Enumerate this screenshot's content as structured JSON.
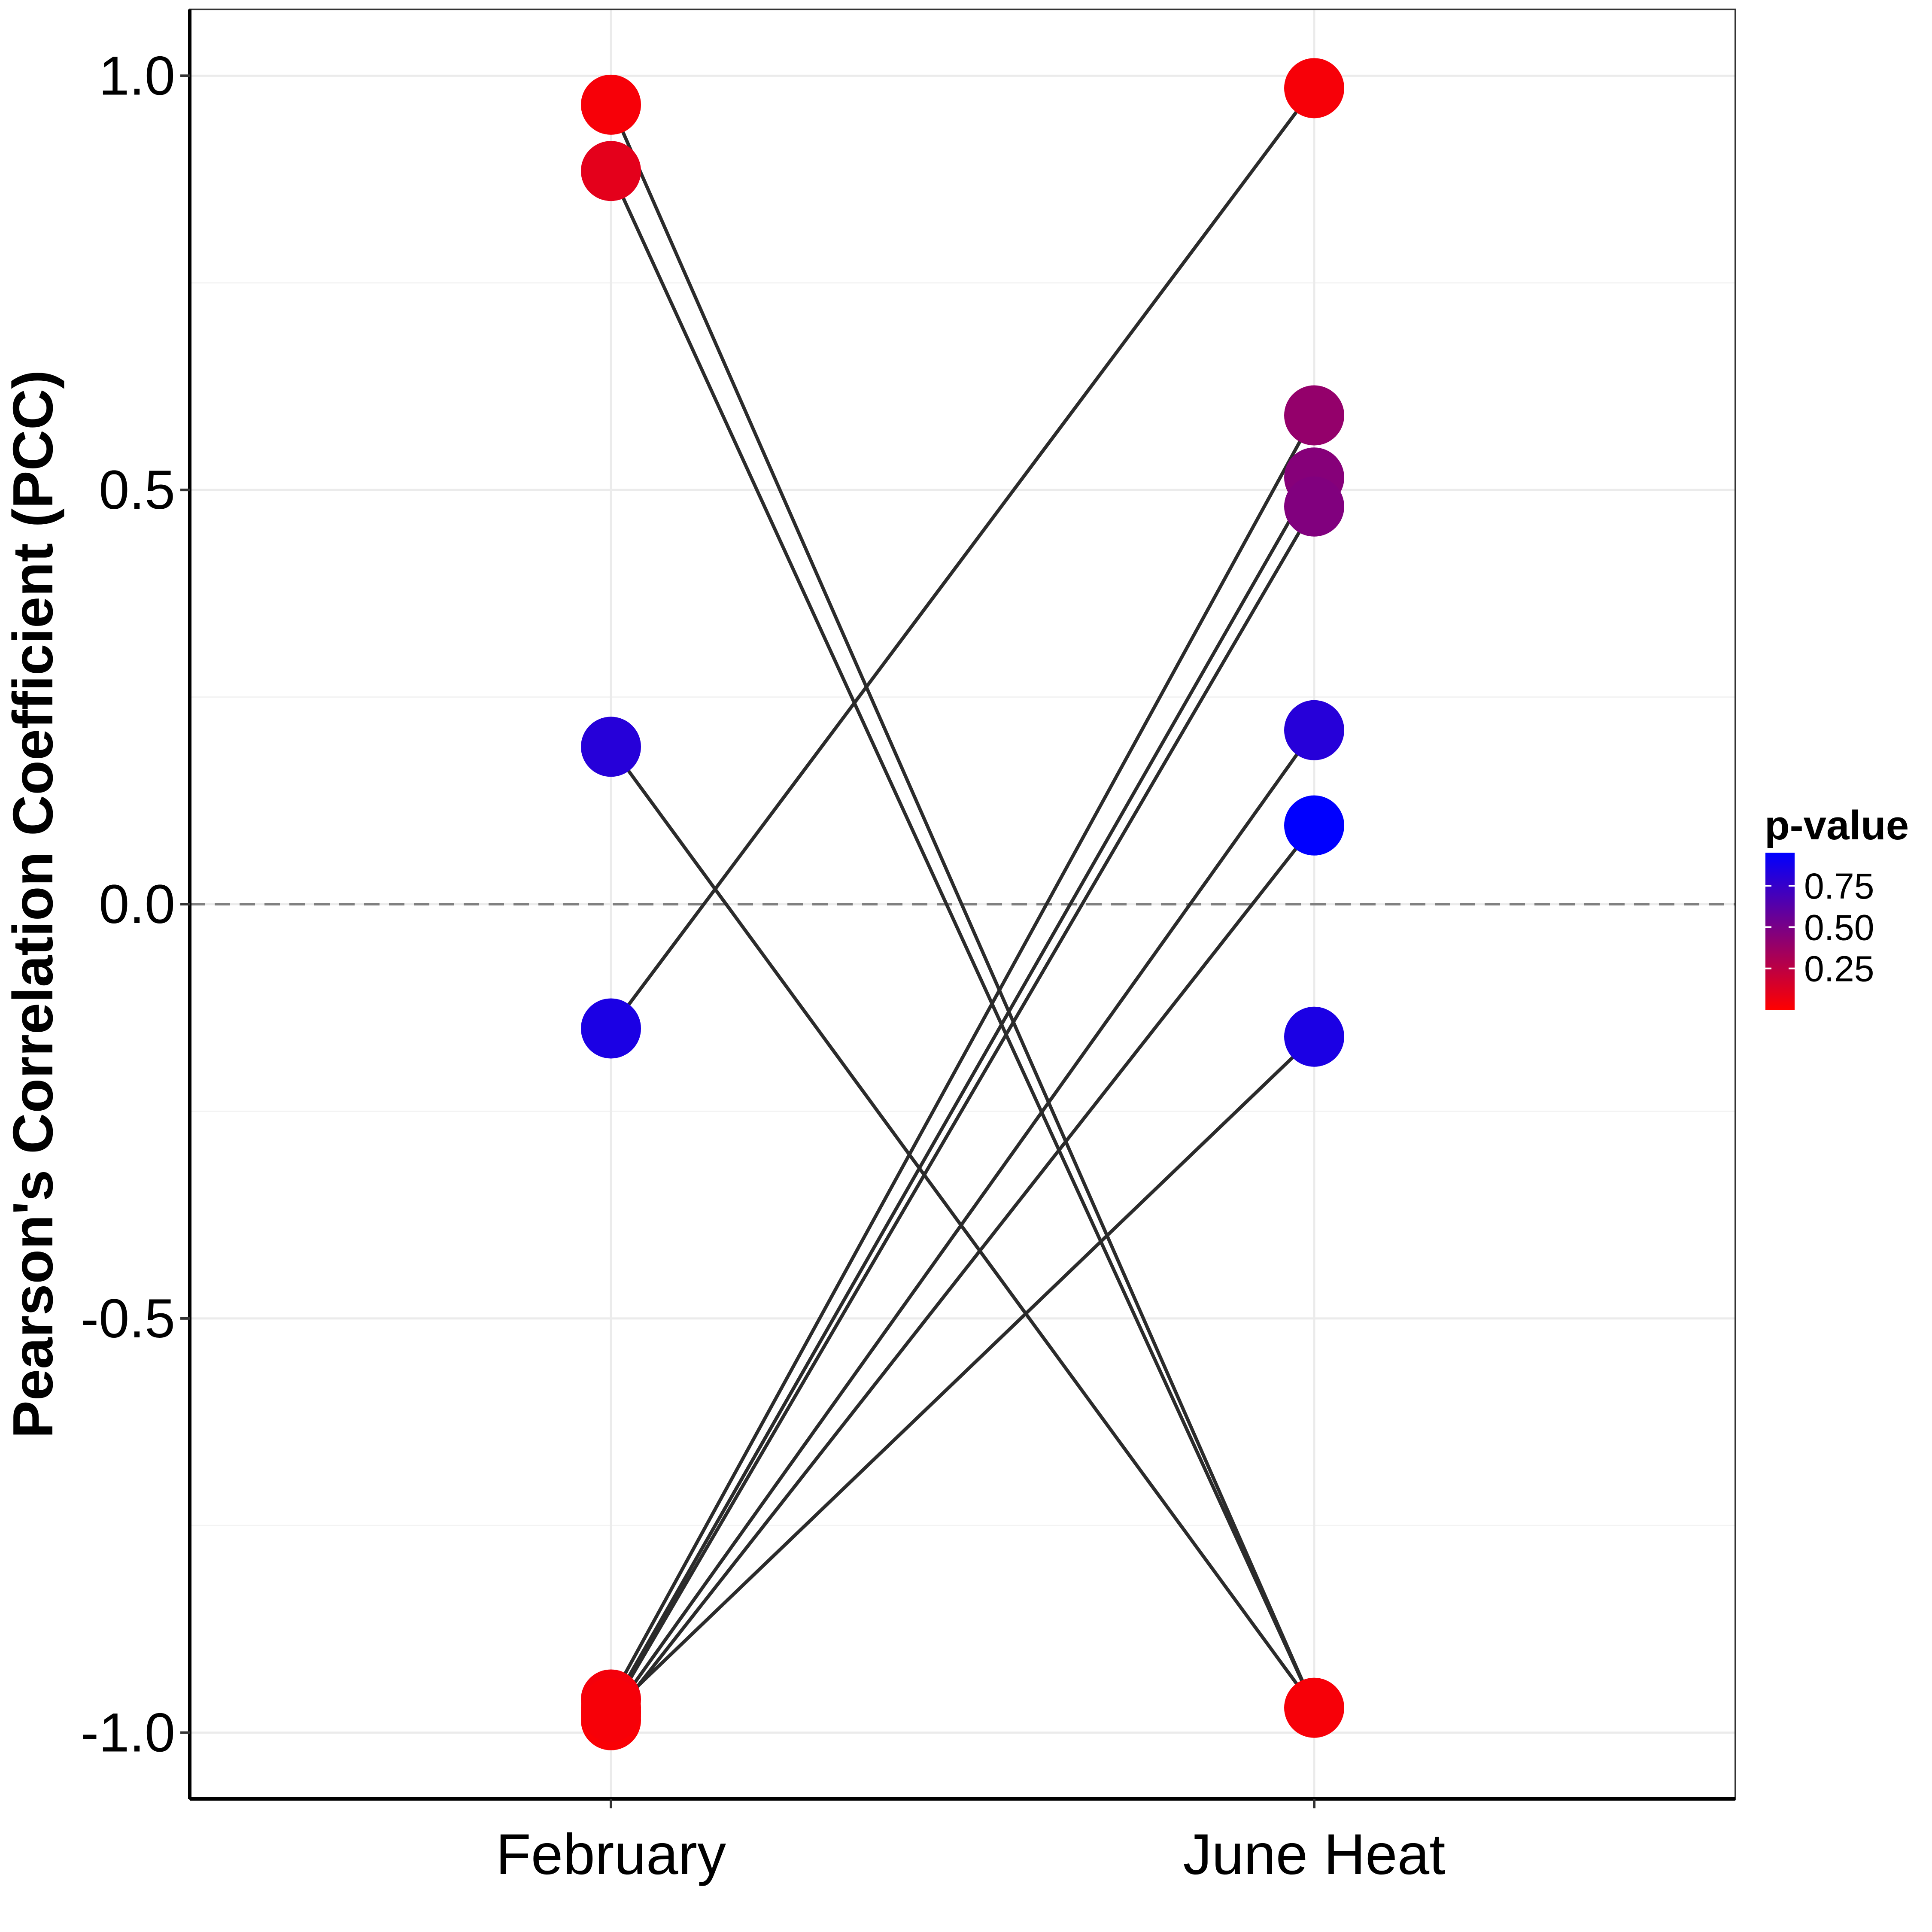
{
  "chart_data": {
    "type": "scatter",
    "title": "",
    "xlabel": "",
    "ylabel": "Pearson's Correlation Coefficient (PCC)",
    "categories": [
      "February",
      "June Heat"
    ],
    "ylim": [
      -1.08,
      1.08
    ],
    "yticks": [
      1.0,
      0.5,
      0.0,
      -0.5,
      -1.0
    ],
    "ytick_labels": [
      "1.0",
      "0.5",
      "0.0",
      "-0.5",
      "-1.0"
    ],
    "reference_line": {
      "y": 0,
      "style": "dashed",
      "color": "#808080"
    },
    "grid": true,
    "legend": {
      "title": "p-value",
      "position": "right",
      "type": "colorbar",
      "range": [
        0.0,
        0.95
      ],
      "ticks": [
        0.25,
        0.5,
        0.75
      ],
      "tick_labels": [
        "0.25",
        "0.50",
        "0.75"
      ],
      "low_color": "#ff0000",
      "high_color": "#0000ff"
    },
    "pairs": [
      {
        "february": 0.965,
        "june_heat": -0.97,
        "p_value": 0.03
      },
      {
        "february": 0.885,
        "june_heat": -0.97,
        "p_value": 0.1
      },
      {
        "february": 0.19,
        "june_heat": -0.97,
        "p_value": 0.81
      },
      {
        "february": -0.15,
        "june_heat": 0.985,
        "p_value": 0.85
      },
      {
        "february": -0.96,
        "june_heat": 0.59,
        "p_value": 0.04
      },
      {
        "february": -0.97,
        "june_heat": 0.515,
        "p_value": 0.03
      },
      {
        "february": -0.975,
        "june_heat": 0.48,
        "p_value": 0.02
      },
      {
        "february": -0.98,
        "june_heat": 0.21,
        "p_value": 0.02
      },
      {
        "february": -0.985,
        "june_heat": 0.095,
        "p_value": 0.02
      },
      {
        "february": -0.975,
        "june_heat": -0.16,
        "p_value": 0.03
      }
    ],
    "june_heat_p_values": [
      0.03,
      0.4,
      0.45,
      0.47,
      0.81,
      0.95,
      0.85,
      0.03
    ]
  }
}
